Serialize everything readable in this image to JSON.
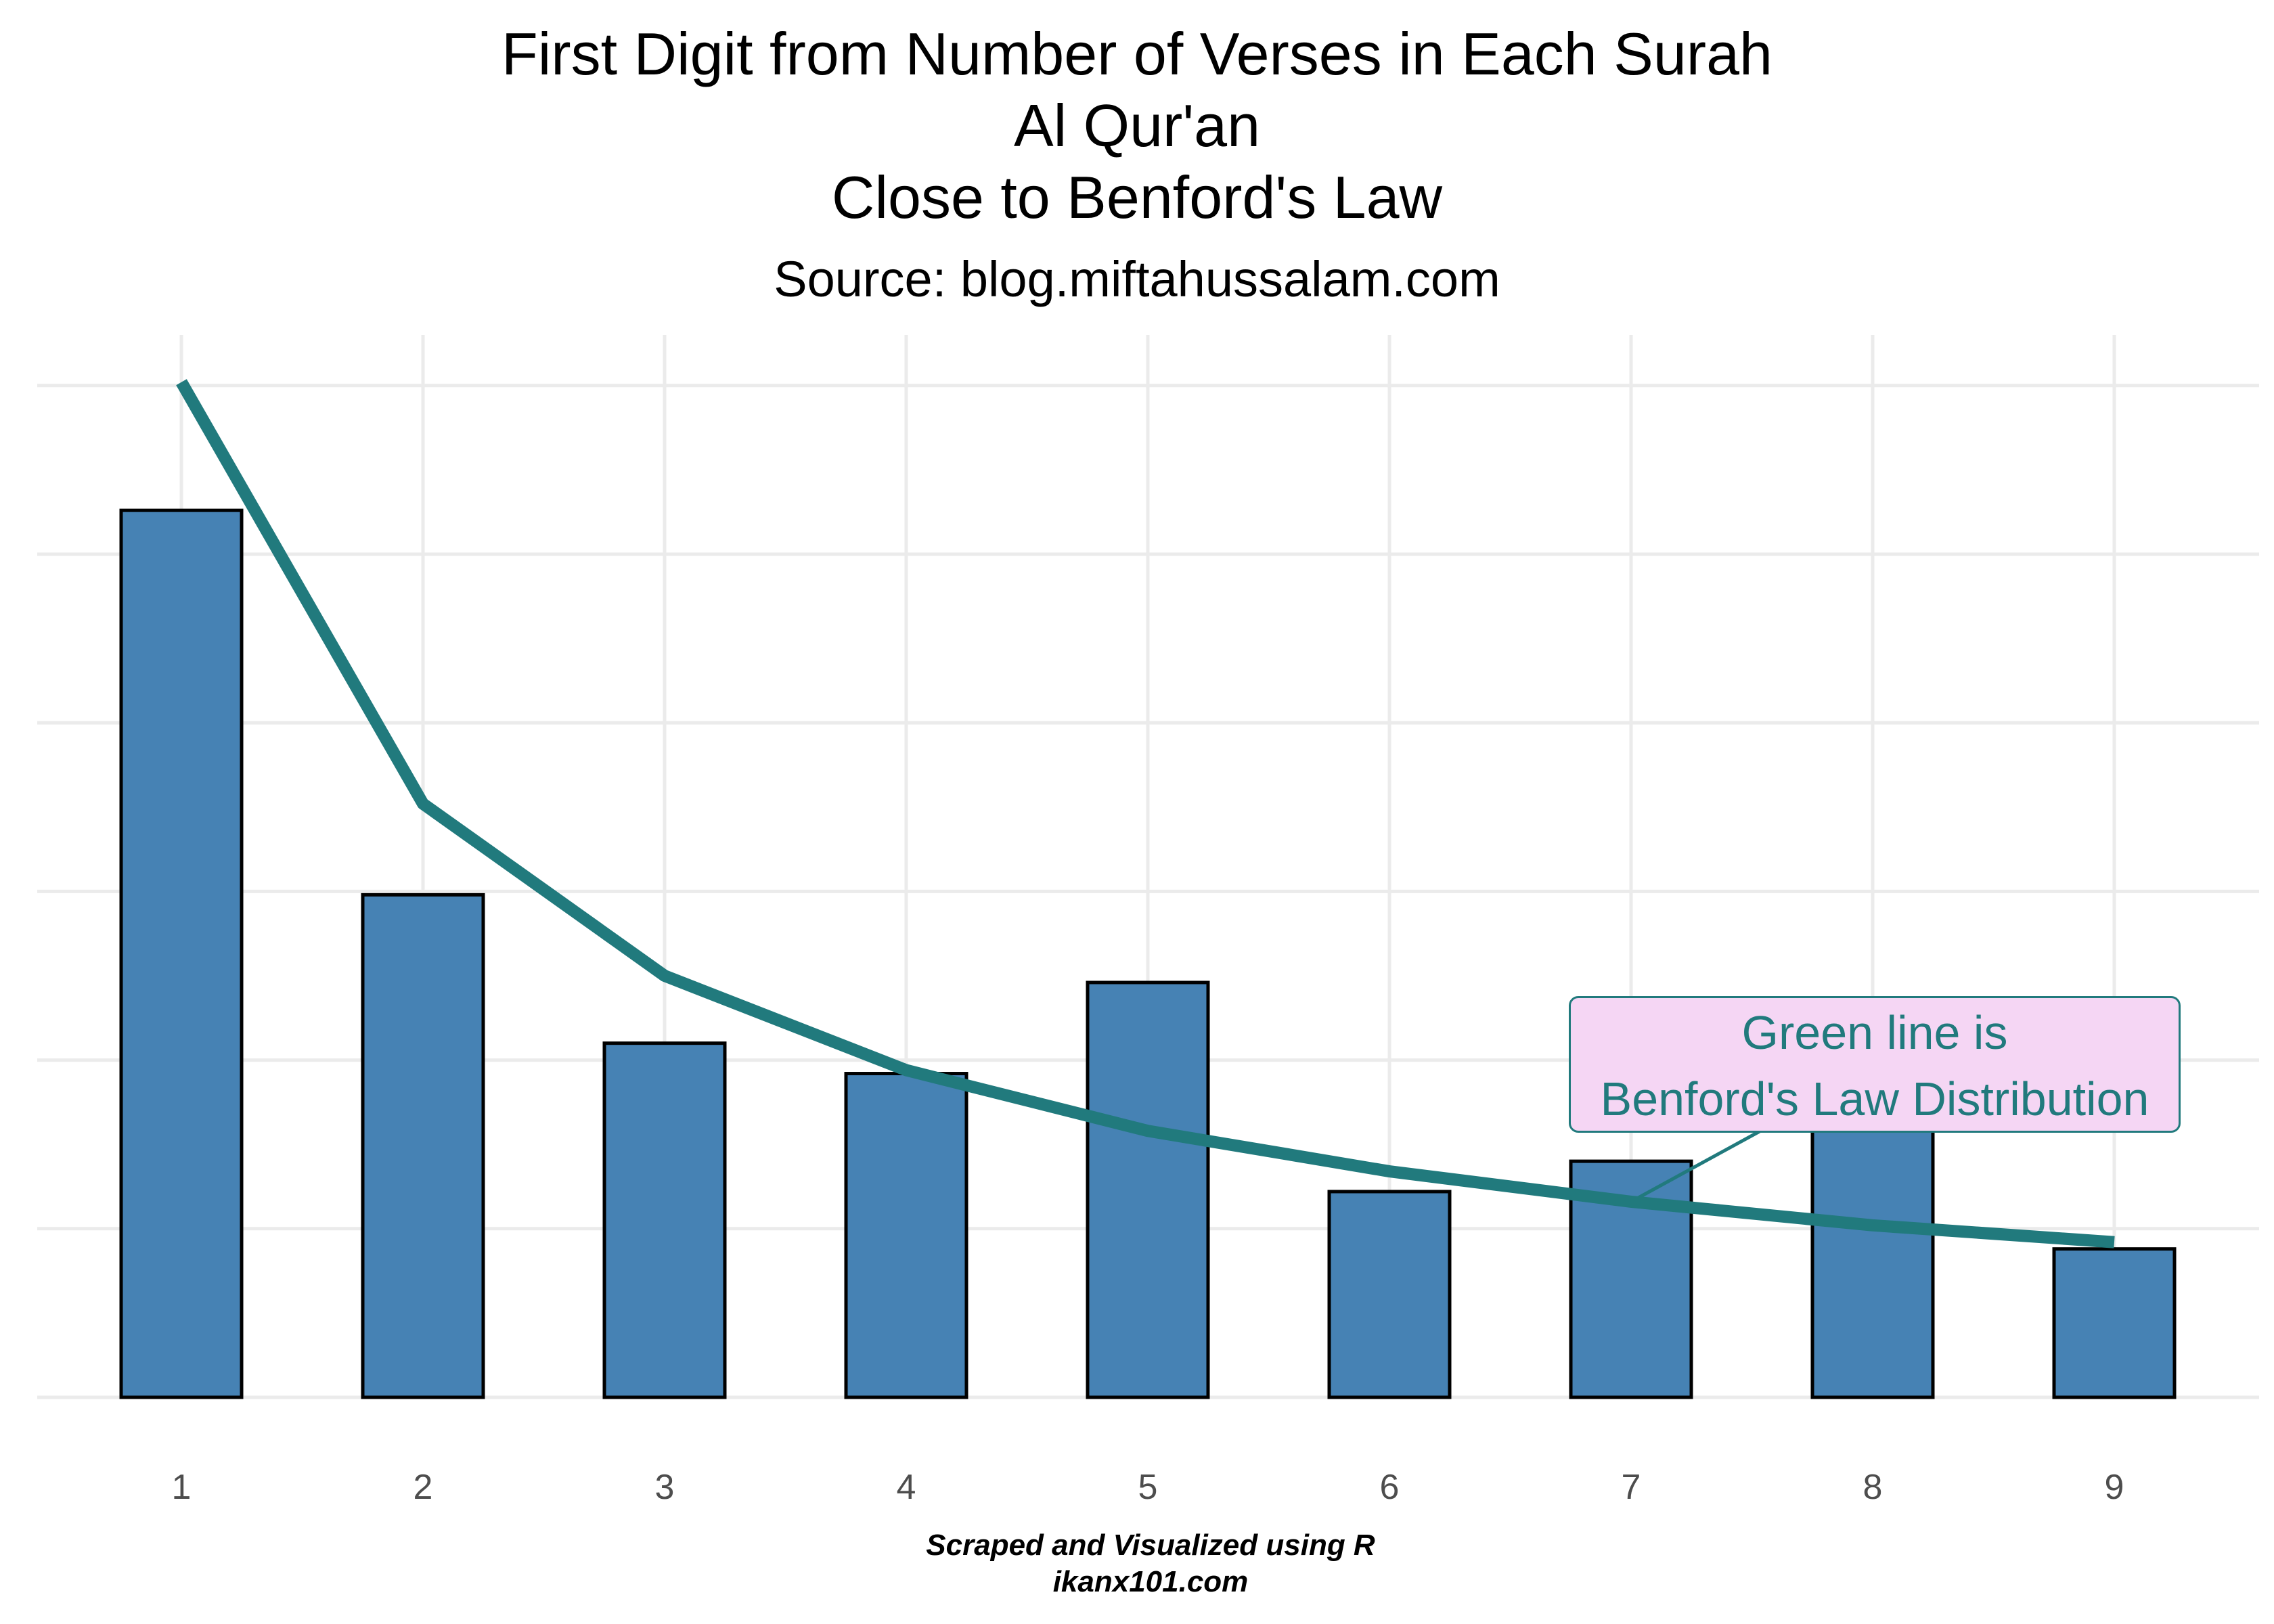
{
  "title_lines": [
    "First Digit from Number of Verses in Each Surah",
    "Al Qur'an",
    "Close to Benford's Law"
  ],
  "subtitle": "Source: blog.miftahussalam.com",
  "caption_lines": [
    "Scraped and Visualized using R",
    "ikanx101.com"
  ],
  "annotation_lines": [
    "Green line is",
    "Benford's Law Distribution"
  ],
  "colors": {
    "bar_fill": "#4682b4",
    "bar_stroke": "#000000",
    "benford_line": "#217a7d",
    "annotation_fill": "#f5d6f4",
    "grid": "#ebebeb"
  },
  "chart_data": {
    "type": "bar",
    "categories": [
      "1",
      "2",
      "3",
      "4",
      "5",
      "6",
      "7",
      "8",
      "9"
    ],
    "series": [
      {
        "type": "bar",
        "values": [
          0.263,
          0.149,
          0.105,
          0.096,
          0.123,
          0.061,
          0.07,
          0.079,
          0.044
        ]
      },
      {
        "type": "line",
        "values": [
          0.301,
          0.176,
          0.125,
          0.097,
          0.079,
          0.067,
          0.058,
          0.051,
          0.046
        ]
      }
    ],
    "ylim": [
      0,
      0.315
    ],
    "y_ticks_shown": false,
    "grid": true,
    "xlabel": "",
    "ylabel": ""
  }
}
